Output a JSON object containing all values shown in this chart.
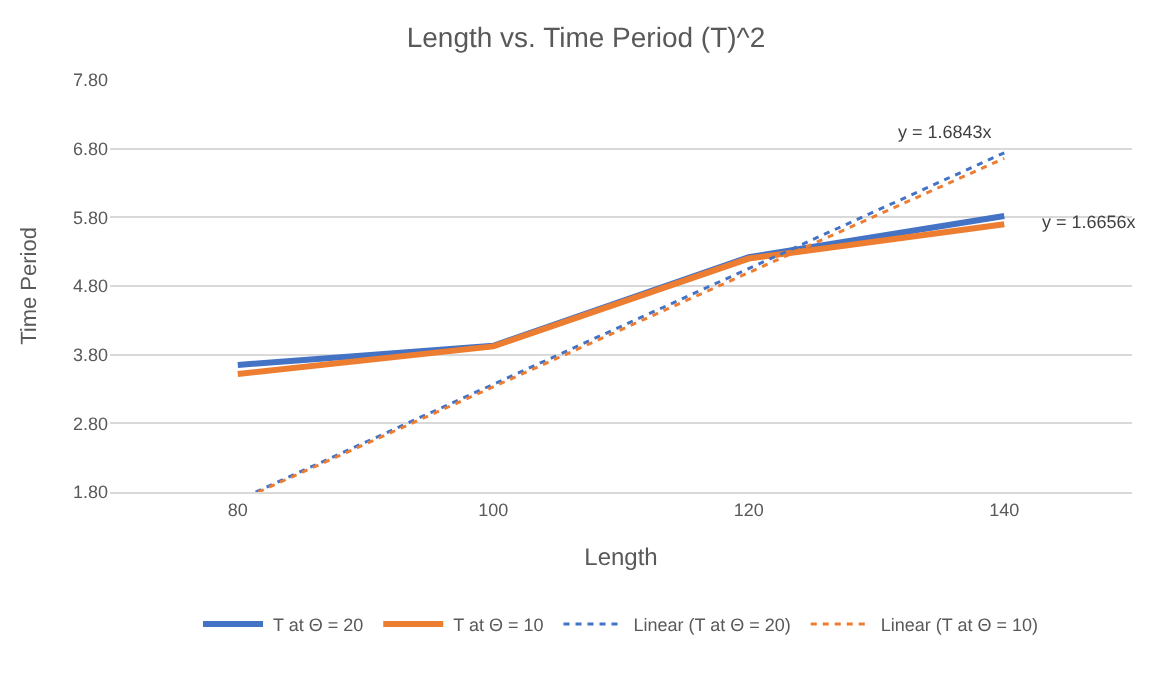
{
  "chart_data": {
    "type": "line",
    "title": "Length vs. Time Period (T)^2",
    "xlabel": "Length",
    "ylabel": "Time Period",
    "x": [
      80,
      100,
      120,
      140
    ],
    "xlim": [
      70,
      150
    ],
    "xticks": [
      80,
      100,
      120,
      140
    ],
    "ylim": [
      1.8,
      7.8
    ],
    "yticks": [
      {
        "value": 1.8,
        "label": "1.80"
      },
      {
        "value": 2.8,
        "label": "2.80"
      },
      {
        "value": 3.8,
        "label": "3.80"
      },
      {
        "value": 4.8,
        "label": "4.80"
      },
      {
        "value": 5.8,
        "label": "5.80"
      },
      {
        "value": 6.8,
        "label": "6.80"
      },
      {
        "value": 7.8,
        "label": "7.80"
      }
    ],
    "grid": "y",
    "legend": "bottom",
    "series": [
      {
        "name": "T at Θ = 20",
        "color": "#4472c4",
        "values": [
          3.65,
          3.93,
          5.22,
          5.82
        ],
        "line_style": "solid"
      },
      {
        "name": "T at Θ = 10",
        "color": "#ed7d31",
        "values": [
          3.52,
          3.92,
          5.2,
          5.7
        ],
        "line_style": "solid"
      },
      {
        "name": "Linear (T at Θ = 20)",
        "color": "#4472c4",
        "x": [
          81.4,
          140
        ],
        "values": [
          1.8,
          6.74
        ],
        "line_style": "dotted"
      },
      {
        "name": "Linear (T at Θ = 10)",
        "color": "#ed7d31",
        "x": [
          81.6,
          140
        ],
        "values": [
          1.8,
          6.66
        ],
        "line_style": "dotted"
      }
    ],
    "annotations": [
      "y = 1.6843x",
      "y = 1.6656x"
    ]
  }
}
